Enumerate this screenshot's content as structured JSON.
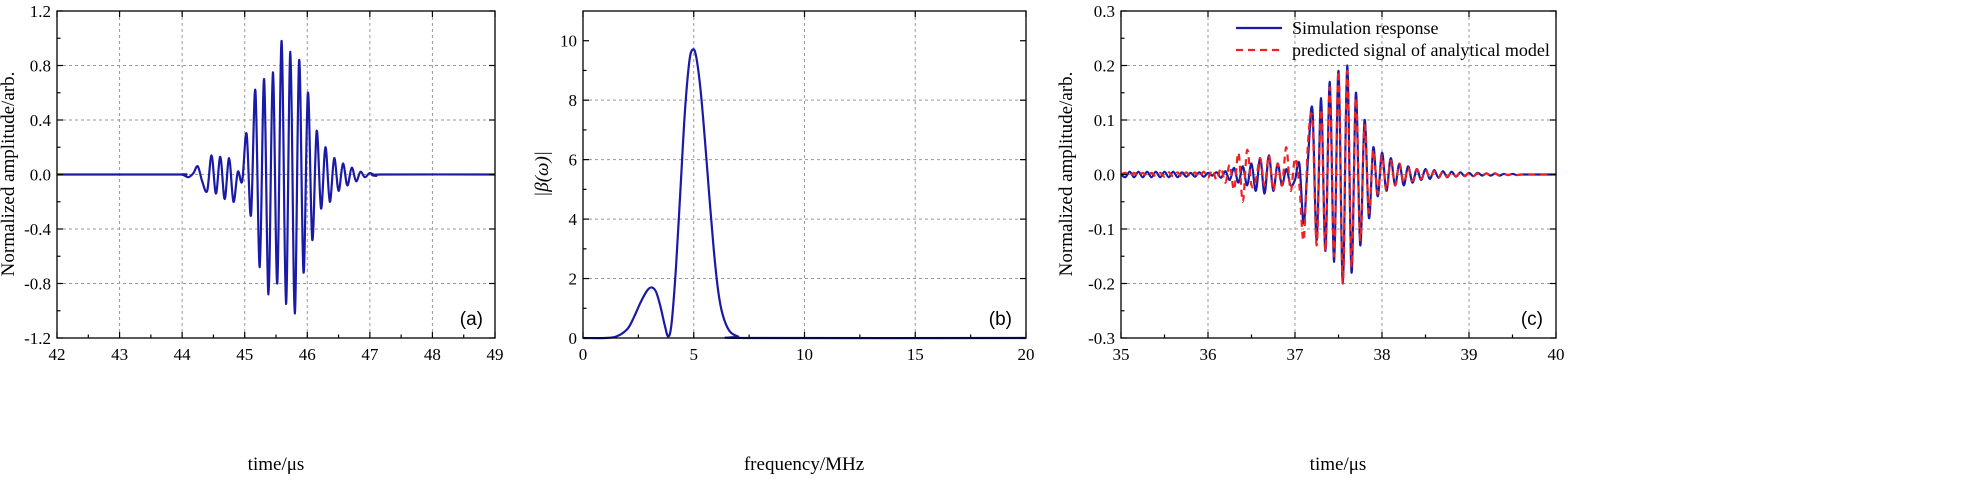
{
  "chart_data": [
    {
      "type": "line",
      "panel_label": "(a)",
      "xlabel": "time/μs",
      "ylabel": "Normalized amplitude/arb.",
      "xlim": [
        42,
        49
      ],
      "ylim": [
        -1.2,
        1.2
      ],
      "xticks": [
        42,
        43,
        44,
        45,
        46,
        47,
        48,
        49
      ],
      "xtick_labels": [
        "42",
        "43",
        "44",
        "45",
        "46",
        "47",
        "48",
        "49"
      ],
      "yticks": [
        -1.2,
        -0.8,
        -0.4,
        0.0,
        0.4,
        0.8,
        1.2
      ],
      "ytick_labels": [
        "-1.2",
        "-0.8",
        "-0.4",
        "0.0",
        "0.4",
        "0.8",
        "1.2"
      ],
      "grid": true,
      "series": [
        {
          "color": "#1a1aa6",
          "style": "solid",
          "x": [
            42.0,
            43.9,
            44.0,
            44.1,
            44.18,
            44.25,
            44.32,
            44.4,
            44.47,
            44.54,
            44.61,
            44.68,
            44.75,
            44.82,
            44.89,
            44.96,
            45.03,
            45.1,
            45.17,
            45.24,
            45.31,
            45.38,
            45.45,
            45.52,
            45.59,
            45.66,
            45.73,
            45.8,
            45.87,
            45.94,
            46.01,
            46.08,
            46.15,
            46.22,
            46.29,
            46.36,
            46.43,
            46.5,
            46.57,
            46.64,
            46.71,
            46.78,
            46.85,
            46.92,
            47.0,
            47.1,
            47.2,
            49.0
          ],
          "y": [
            0.0,
            0.0,
            0.0,
            -0.02,
            0.01,
            0.06,
            -0.05,
            -0.12,
            0.14,
            -0.14,
            0.13,
            -0.18,
            0.12,
            -0.2,
            0.02,
            -0.05,
            0.3,
            -0.3,
            0.62,
            -0.68,
            0.7,
            -0.88,
            0.75,
            -0.8,
            0.98,
            -0.95,
            0.9,
            -1.02,
            0.84,
            -0.72,
            0.6,
            -0.48,
            0.32,
            -0.25,
            0.2,
            -0.2,
            0.12,
            -0.12,
            0.08,
            -0.08,
            0.05,
            -0.05,
            0.02,
            -0.02,
            0.01,
            -0.01,
            0.0,
            0.0
          ]
        }
      ]
    },
    {
      "type": "line",
      "panel_label": "(b)",
      "xlabel": "frequency/MHz",
      "ylabel": "|β(ω)|",
      "xlim": [
        0,
        20
      ],
      "ylim": [
        0,
        11
      ],
      "xticks": [
        0,
        5,
        10,
        15,
        20
      ],
      "xtick_labels": [
        "0",
        "5",
        "10",
        "15",
        "20"
      ],
      "yticks": [
        0,
        2,
        4,
        6,
        8,
        10
      ],
      "ytick_labels": [
        "0",
        "2",
        "4",
        "6",
        "8",
        "10"
      ],
      "grid": true,
      "series": [
        {
          "color": "#1a1aa6",
          "style": "solid",
          "x": [
            0.0,
            1.0,
            1.5,
            2.0,
            2.3,
            2.6,
            2.9,
            3.1,
            3.3,
            3.5,
            3.7,
            3.85,
            4.0,
            4.2,
            4.4,
            4.6,
            4.8,
            4.95,
            5.1,
            5.3,
            5.5,
            5.7,
            5.9,
            6.1,
            6.3,
            6.6,
            7.0,
            7.5,
            20.0
          ],
          "y": [
            0.0,
            0.0,
            0.05,
            0.3,
            0.7,
            1.2,
            1.6,
            1.7,
            1.55,
            1.05,
            0.4,
            0.05,
            0.5,
            2.4,
            5.0,
            7.6,
            9.3,
            9.7,
            9.5,
            8.4,
            6.7,
            4.8,
            3.0,
            1.6,
            0.8,
            0.25,
            0.05,
            0.0,
            0.0
          ]
        }
      ]
    },
    {
      "type": "line",
      "panel_label": "(c)",
      "xlabel": "time/μs",
      "ylabel": "Normalized amplitude/arb.",
      "xlim": [
        35,
        40
      ],
      "ylim": [
        -0.3,
        0.3
      ],
      "xticks": [
        35,
        36,
        37,
        38,
        39,
        40
      ],
      "xtick_labels": [
        "35",
        "36",
        "37",
        "38",
        "39",
        "40"
      ],
      "yticks": [
        -0.3,
        -0.2,
        -0.1,
        0.0,
        0.1,
        0.2,
        0.3
      ],
      "ytick_labels": [
        "-0.3",
        "-0.2",
        "-0.1",
        "0.0",
        "0.1",
        "0.2",
        "0.3"
      ],
      "grid": true,
      "legend_position": "top-right",
      "series": [
        {
          "name": "Simulation response",
          "color": "#1a1aa6",
          "style": "solid",
          "x": [
            35.0,
            35.05,
            35.1,
            35.15,
            35.2,
            35.25,
            35.3,
            35.35,
            35.4,
            35.45,
            35.5,
            35.55,
            35.6,
            35.65,
            35.7,
            35.75,
            35.8,
            35.85,
            35.9,
            35.95,
            36.0,
            36.05,
            36.1,
            36.15,
            36.2,
            36.25,
            36.3,
            36.35,
            36.4,
            36.45,
            36.5,
            36.55,
            36.6,
            36.65,
            36.7,
            36.75,
            36.8,
            36.85,
            36.9,
            36.95,
            37.0,
            37.05,
            37.1,
            37.15,
            37.2,
            37.25,
            37.3,
            37.35,
            37.4,
            37.45,
            37.5,
            37.55,
            37.6,
            37.65,
            37.7,
            37.75,
            37.8,
            37.85,
            37.9,
            37.95,
            38.0,
            38.05,
            38.1,
            38.15,
            38.2,
            38.25,
            38.3,
            38.35,
            38.4,
            38.45,
            38.5,
            38.55,
            38.6,
            38.65,
            38.7,
            38.75,
            38.8,
            38.85,
            38.9,
            38.95,
            39.0,
            39.05,
            39.1,
            39.15,
            39.2,
            39.25,
            39.3,
            39.35,
            39.4,
            39.45,
            39.5,
            39.55,
            39.6,
            39.7,
            39.8,
            40.0
          ],
          "y": [
            0.0,
            -0.005,
            0.005,
            -0.005,
            0.005,
            -0.005,
            0.005,
            -0.005,
            0.005,
            -0.005,
            0.005,
            -0.005,
            0.005,
            -0.005,
            0.004,
            -0.004,
            0.003,
            -0.004,
            0.004,
            -0.004,
            0.003,
            -0.002,
            0.004,
            -0.006,
            0.006,
            -0.01,
            0.012,
            -0.015,
            0.015,
            -0.02,
            0.02,
            -0.03,
            0.03,
            -0.035,
            0.035,
            -0.03,
            0.02,
            -0.02,
            0.01,
            -0.02,
            -0.01,
            0.02,
            -0.09,
            0.03,
            0.12,
            -0.12,
            0.14,
            -0.14,
            0.17,
            -0.16,
            0.19,
            -0.2,
            0.2,
            -0.18,
            0.15,
            -0.13,
            0.1,
            -0.08,
            0.05,
            -0.04,
            0.04,
            -0.03,
            0.03,
            -0.02,
            0.02,
            -0.02,
            0.015,
            -0.015,
            0.01,
            -0.01,
            0.01,
            -0.008,
            0.008,
            -0.006,
            0.006,
            -0.005,
            0.005,
            -0.004,
            0.004,
            -0.003,
            0.003,
            -0.003,
            0.003,
            -0.002,
            0.002,
            -0.002,
            0.002,
            -0.002,
            0.001,
            -0.001,
            0.001,
            -0.001,
            0.0,
            0.0,
            0.0,
            0.0
          ]
        },
        {
          "name": "predicted signal of analytical model",
          "color": "#ee2222",
          "style": "dashed",
          "x": [
            35.0,
            35.05,
            35.1,
            35.15,
            35.2,
            35.25,
            35.3,
            35.35,
            35.4,
            35.45,
            35.5,
            35.55,
            35.6,
            35.65,
            35.7,
            35.75,
            35.8,
            35.85,
            35.9,
            35.95,
            36.0,
            36.05,
            36.1,
            36.15,
            36.2,
            36.25,
            36.3,
            36.35,
            36.4,
            36.45,
            36.5,
            36.55,
            36.6,
            36.65,
            36.7,
            36.75,
            36.8,
            36.85,
            36.9,
            36.95,
            37.0,
            37.05,
            37.1,
            37.15,
            37.2,
            37.25,
            37.3,
            37.35,
            37.4,
            37.45,
            37.5,
            37.55,
            37.6,
            37.65,
            37.7,
            37.75,
            37.8,
            37.85,
            37.9,
            37.95,
            38.0,
            38.05,
            38.1,
            38.15,
            38.2,
            38.25,
            38.3,
            38.35,
            38.4,
            38.45,
            38.5,
            38.55,
            38.6,
            38.65,
            38.7,
            38.75,
            38.8,
            38.85,
            38.9,
            38.95,
            39.0,
            39.05,
            39.1,
            39.15,
            39.2,
            39.25,
            39.3,
            39.35,
            39.4,
            39.45,
            39.5,
            39.55,
            39.6,
            39.7,
            39.8,
            40.0
          ],
          "y": [
            0.0,
            0.003,
            -0.003,
            0.003,
            -0.003,
            0.003,
            -0.003,
            0.003,
            -0.003,
            0.003,
            -0.004,
            0.004,
            -0.004,
            0.004,
            -0.004,
            0.004,
            -0.004,
            0.004,
            -0.005,
            0.005,
            -0.006,
            0.008,
            -0.01,
            0.012,
            -0.015,
            0.018,
            -0.028,
            0.04,
            -0.05,
            0.045,
            -0.02,
            -0.01,
            0.03,
            -0.02,
            0.035,
            -0.03,
            0.02,
            -0.02,
            0.05,
            -0.03,
            0.03,
            -0.02,
            -0.12,
            0.06,
            0.1,
            -0.13,
            0.12,
            -0.14,
            0.16,
            -0.15,
            0.19,
            -0.2,
            0.19,
            -0.17,
            0.14,
            -0.12,
            0.09,
            -0.07,
            0.045,
            -0.035,
            0.035,
            -0.03,
            0.025,
            -0.02,
            0.02,
            -0.015,
            0.012,
            -0.012,
            0.01,
            -0.008,
            0.008,
            -0.006,
            0.006,
            -0.005,
            0.005,
            -0.004,
            0.004,
            -0.003,
            0.003,
            -0.003,
            0.003,
            -0.003,
            0.002,
            -0.002,
            0.002,
            -0.002,
            0.002,
            -0.002,
            0.001,
            -0.001,
            0.001,
            -0.001,
            0.0,
            0.0,
            0.0,
            0.0
          ]
        }
      ]
    }
  ]
}
